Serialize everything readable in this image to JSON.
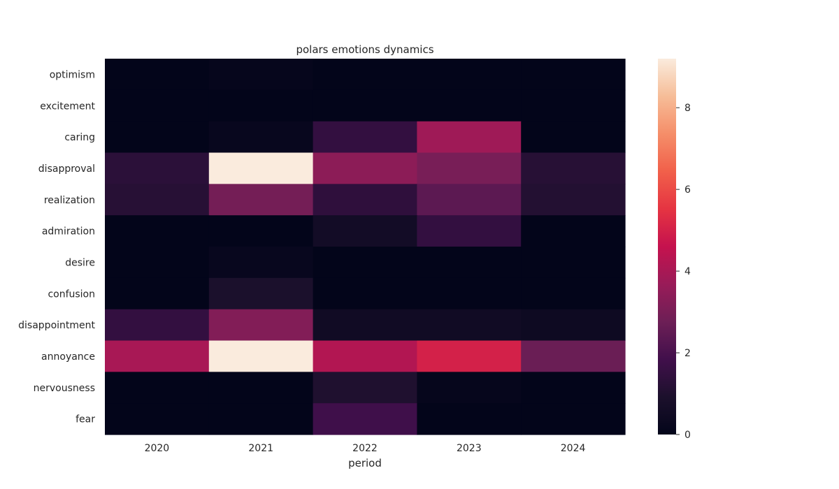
{
  "chart_data": {
    "type": "heatmap",
    "title": "polars emotions dynamics",
    "xlabel": "period",
    "ylabel": "",
    "x_categories": [
      "2020",
      "2021",
      "2022",
      "2023",
      "2024"
    ],
    "y_categories": [
      "optimism",
      "excitement",
      "caring",
      "disapproval",
      "realization",
      "admiration",
      "desire",
      "confusion",
      "disappointment",
      "annoyance",
      "nervousness",
      "fear"
    ],
    "values": [
      [
        0.0,
        0.1,
        0.0,
        0.0,
        0.0
      ],
      [
        0.0,
        0.0,
        0.0,
        0.0,
        0.0
      ],
      [
        0.0,
        0.2,
        1.5,
        3.8,
        0.0
      ],
      [
        1.3,
        9.2,
        3.4,
        3.0,
        1.2
      ],
      [
        1.2,
        2.9,
        1.4,
        2.4,
        1.1
      ],
      [
        0.0,
        0.0,
        0.6,
        1.5,
        0.0
      ],
      [
        0.0,
        0.2,
        0.0,
        0.0,
        0.0
      ],
      [
        0.0,
        0.9,
        0.0,
        0.0,
        0.0
      ],
      [
        1.5,
        3.2,
        0.5,
        0.5,
        0.4
      ],
      [
        4.0,
        9.2,
        4.2,
        5.0,
        2.7
      ],
      [
        0.0,
        0.0,
        1.0,
        0.1,
        0.0
      ],
      [
        0.0,
        0.0,
        1.8,
        0.0,
        0.0
      ]
    ],
    "colorbar": {
      "min": 0,
      "max": 9.2,
      "ticks": [
        0,
        2,
        4,
        6,
        8
      ],
      "colormap": "rocket"
    }
  }
}
